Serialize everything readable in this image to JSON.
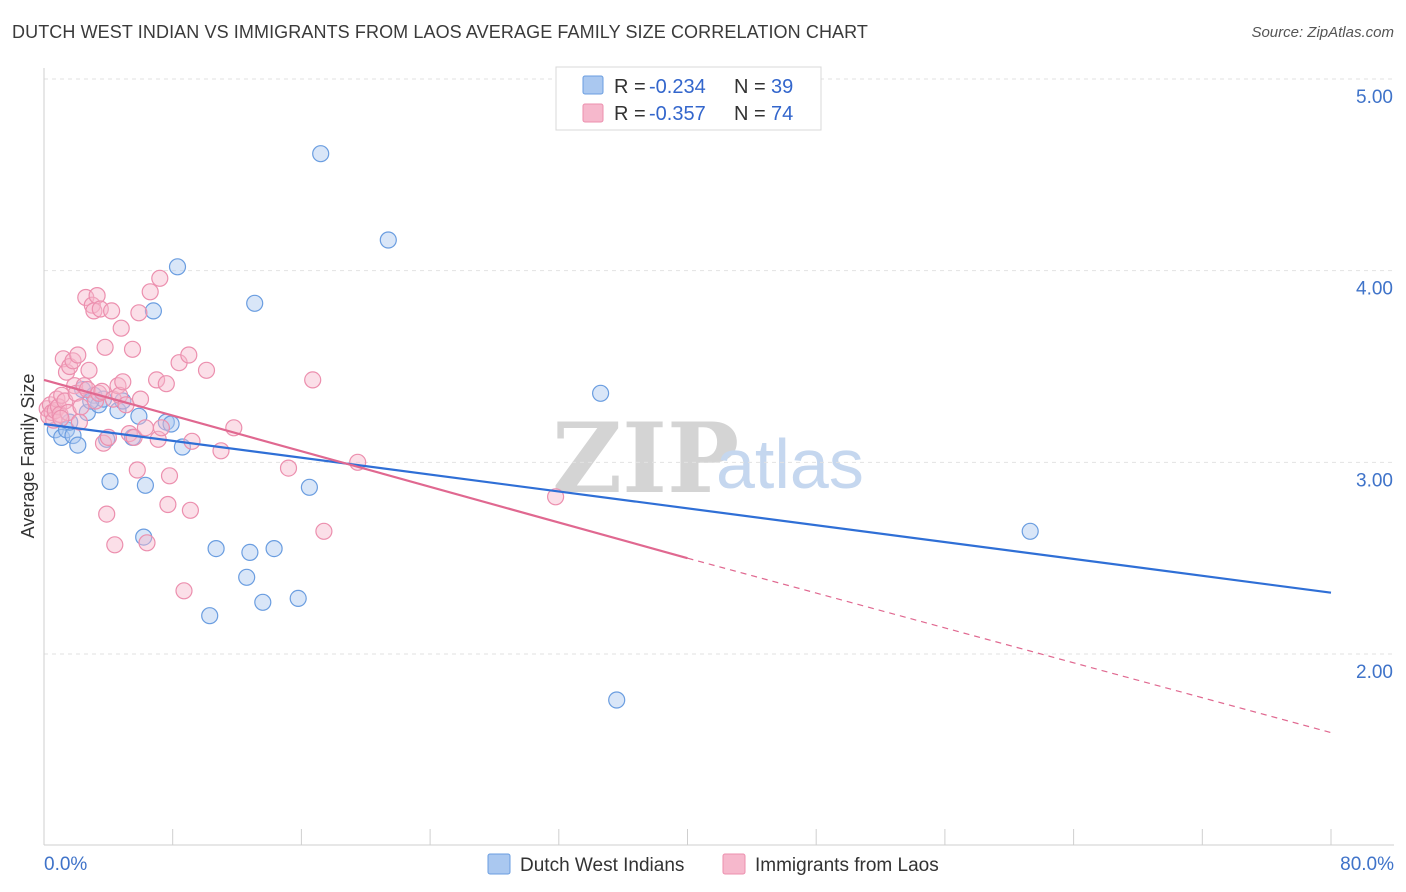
{
  "title": "DUTCH WEST INDIAN VS IMMIGRANTS FROM LAOS AVERAGE FAMILY SIZE CORRELATION CHART",
  "source": "Source: ZipAtlas.com",
  "watermark": {
    "zip": "ZIP",
    "atlas": "atlas"
  },
  "colors": {
    "blue_fill": "#aac8f0",
    "blue_stroke": "#6a9de0",
    "blue_line": "#2f6fd6",
    "pink_fill": "#f6b8cc",
    "pink_stroke": "#ec8fae",
    "pink_line": "#e06890",
    "axis_label": "#3f73c9",
    "grid": "#e2e2e2"
  },
  "legend": {
    "series": [
      {
        "r_label": "R = ",
        "r_value": "-0.234",
        "n_label": "N = ",
        "n_value": "39"
      },
      {
        "r_label": "R = ",
        "r_value": "-0.357",
        "n_label": "N = ",
        "n_value": "74"
      }
    ]
  },
  "chart_data": {
    "type": "scatter",
    "title": "DUTCH WEST INDIAN VS IMMIGRANTS FROM LAOS AVERAGE FAMILY SIZE CORRELATION CHART",
    "xlabel": "",
    "ylabel": "Average Family Size",
    "xlim": [
      0,
      80
    ],
    "ylim": [
      1.0,
      5.1
    ],
    "x_tick_labels": {
      "min": "0.0%",
      "max": "80.0%"
    },
    "y_ticks": [
      2.0,
      3.0,
      4.0,
      5.0
    ],
    "y_tick_labels": [
      "2.00",
      "3.00",
      "4.00",
      "5.00"
    ],
    "series": [
      {
        "name": "Dutch West Indians",
        "color_key": "blue",
        "trend": {
          "x0": 0,
          "y0": 3.2,
          "x1": 80,
          "y1": 2.32
        },
        "points": [
          [
            0.7,
            3.17
          ],
          [
            1.1,
            3.13
          ],
          [
            1.4,
            3.17
          ],
          [
            1.8,
            3.14
          ],
          [
            2.1,
            3.09
          ],
          [
            2.4,
            3.38
          ],
          [
            2.7,
            3.26
          ],
          [
            3.1,
            3.35
          ],
          [
            3.4,
            3.3
          ],
          [
            3.7,
            3.33
          ],
          [
            3.9,
            3.12
          ],
          [
            4.1,
            2.9
          ],
          [
            4.6,
            3.27
          ],
          [
            4.9,
            3.32
          ],
          [
            5.5,
            3.13
          ],
          [
            5.9,
            3.24
          ],
          [
            6.2,
            2.61
          ],
          [
            6.3,
            2.88
          ],
          [
            6.8,
            3.79
          ],
          [
            7.6,
            3.21
          ],
          [
            7.9,
            3.2
          ],
          [
            8.3,
            4.02
          ],
          [
            8.6,
            3.08
          ],
          [
            10.3,
            2.2
          ],
          [
            10.7,
            2.55
          ],
          [
            12.6,
            2.4
          ],
          [
            12.8,
            2.53
          ],
          [
            13.1,
            3.83
          ],
          [
            13.6,
            2.27
          ],
          [
            14.3,
            2.55
          ],
          [
            15.8,
            2.29
          ],
          [
            16.5,
            2.87
          ],
          [
            17.2,
            4.61
          ],
          [
            21.4,
            4.16
          ],
          [
            34.6,
            3.36
          ],
          [
            35.6,
            1.76
          ],
          [
            61.3,
            2.64
          ],
          [
            1.6,
            3.21
          ],
          [
            2.9,
            3.32
          ]
        ]
      },
      {
        "name": "Immigrants from Laos",
        "color_key": "pink",
        "trend": {
          "x0": 0,
          "y0": 3.43,
          "x1": 40,
          "y1": 2.5,
          "dash_x1": 80,
          "dash_y1": 1.59
        },
        "points": [
          [
            0.2,
            3.28
          ],
          [
            0.3,
            3.24
          ],
          [
            0.4,
            3.3
          ],
          [
            0.5,
            3.26
          ],
          [
            0.6,
            3.22
          ],
          [
            0.7,
            3.27
          ],
          [
            0.8,
            3.33
          ],
          [
            0.9,
            3.29
          ],
          [
            1.0,
            3.25
          ],
          [
            1.1,
            3.35
          ],
          [
            1.2,
            3.54
          ],
          [
            1.3,
            3.32
          ],
          [
            1.4,
            3.47
          ],
          [
            1.5,
            3.26
          ],
          [
            1.6,
            3.5
          ],
          [
            1.8,
            3.53
          ],
          [
            1.9,
            3.4
          ],
          [
            2.0,
            3.36
          ],
          [
            2.1,
            3.56
          ],
          [
            2.2,
            3.21
          ],
          [
            2.3,
            3.29
          ],
          [
            2.5,
            3.4
          ],
          [
            2.6,
            3.86
          ],
          [
            2.7,
            3.38
          ],
          [
            2.8,
            3.48
          ],
          [
            3.0,
            3.82
          ],
          [
            3.1,
            3.79
          ],
          [
            3.2,
            3.32
          ],
          [
            3.3,
            3.87
          ],
          [
            3.4,
            3.36
          ],
          [
            3.5,
            3.8
          ],
          [
            3.6,
            3.37
          ],
          [
            3.7,
            3.1
          ],
          [
            3.8,
            3.6
          ],
          [
            3.9,
            2.73
          ],
          [
            4.0,
            3.13
          ],
          [
            4.2,
            3.79
          ],
          [
            4.3,
            3.33
          ],
          [
            4.4,
            2.57
          ],
          [
            4.6,
            3.4
          ],
          [
            4.7,
            3.35
          ],
          [
            4.8,
            3.7
          ],
          [
            4.9,
            3.42
          ],
          [
            5.1,
            3.3
          ],
          [
            5.3,
            3.15
          ],
          [
            5.5,
            3.59
          ],
          [
            5.6,
            3.13
          ],
          [
            5.8,
            2.96
          ],
          [
            5.9,
            3.78
          ],
          [
            6.0,
            3.33
          ],
          [
            6.3,
            3.18
          ],
          [
            6.4,
            2.58
          ],
          [
            6.6,
            3.89
          ],
          [
            7.0,
            3.43
          ],
          [
            7.1,
            3.12
          ],
          [
            7.2,
            3.96
          ],
          [
            7.3,
            3.18
          ],
          [
            7.6,
            3.41
          ],
          [
            7.7,
            2.78
          ],
          [
            7.8,
            2.93
          ],
          [
            8.4,
            3.52
          ],
          [
            8.7,
            2.33
          ],
          [
            9.0,
            3.56
          ],
          [
            9.1,
            2.75
          ],
          [
            9.2,
            3.11
          ],
          [
            10.1,
            3.48
          ],
          [
            11.0,
            3.06
          ],
          [
            11.8,
            3.18
          ],
          [
            15.2,
            2.97
          ],
          [
            16.7,
            3.43
          ],
          [
            17.4,
            2.64
          ],
          [
            19.5,
            3.0
          ],
          [
            31.8,
            2.82
          ],
          [
            1.05,
            3.23
          ]
        ]
      }
    ]
  },
  "bottom_legend": [
    {
      "label": "Dutch West Indians"
    },
    {
      "label": "Immigrants from Laos"
    }
  ]
}
